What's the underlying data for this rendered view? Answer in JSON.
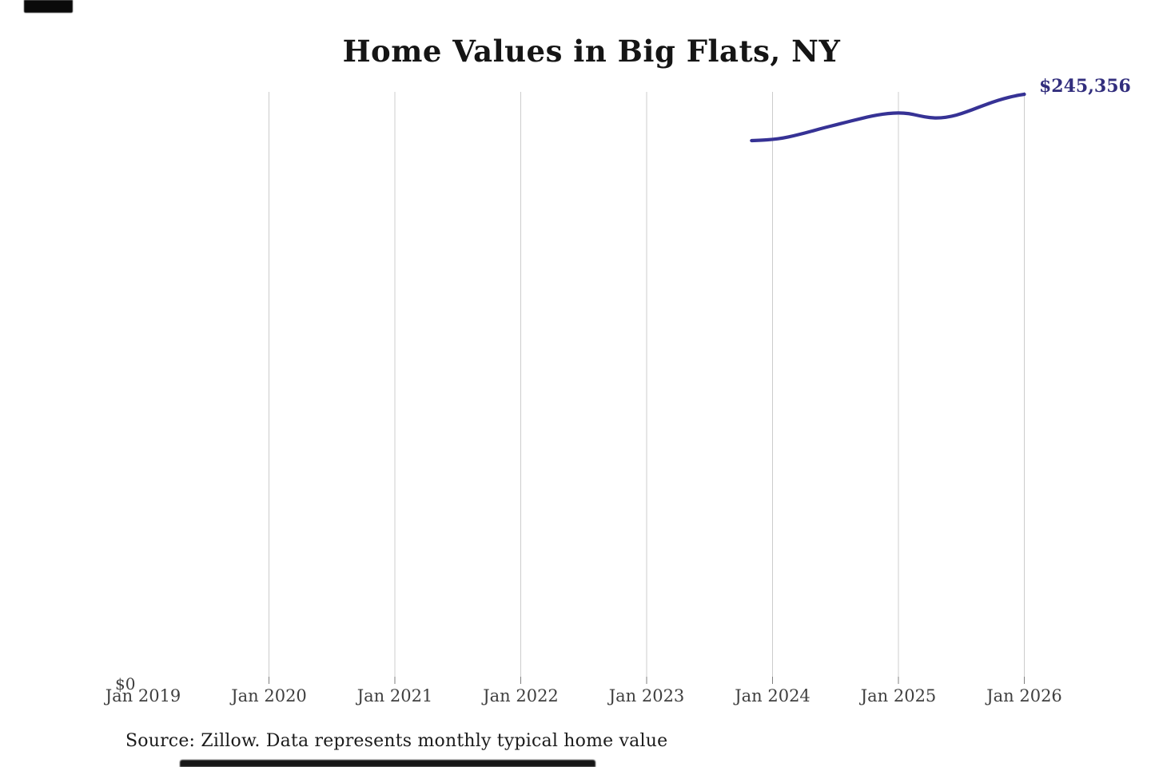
{
  "chart": {
    "title": "Home Values in Big Flats, NY",
    "end_label": "$245,356",
    "y_zero_label": "$0",
    "source_note": "Source: Zillow. Data represents monthly typical home value",
    "colors": {
      "line": "#363295",
      "end_label_text": "#322e7d",
      "gridline": "#cccccc",
      "tick": "#7f7f7f",
      "axis_label": "#3f3f3f",
      "title": "#151515",
      "source": "#1b1b1b"
    }
  },
  "chart_data": {
    "type": "line",
    "title": "Home Values in Big Flats, NY",
    "xlabel": "",
    "ylabel": "",
    "ylim": [
      0,
      246500
    ],
    "grid": "vertical-only",
    "legend": "none",
    "x_ticks": [
      {
        "label": "Jan 2019",
        "gridline": false
      },
      {
        "label": "Jan 2020",
        "gridline": true
      },
      {
        "label": "Jan 2021",
        "gridline": true
      },
      {
        "label": "Jan 2022",
        "gridline": true
      },
      {
        "label": "Jan 2023",
        "gridline": true
      },
      {
        "label": "Jan 2024",
        "gridline": true
      },
      {
        "label": "Jan 2025",
        "gridline": true
      },
      {
        "label": "Jan 2026",
        "gridline": true
      }
    ],
    "series": [
      {
        "name": "Monthly typical home value",
        "color": "#363295",
        "points": [
          {
            "date": "2023-11",
            "value": 225900
          },
          {
            "date": "2023-12",
            "value": 226100
          },
          {
            "date": "2024-01",
            "value": 226400
          },
          {
            "date": "2024-02",
            "value": 227000
          },
          {
            "date": "2024-03",
            "value": 227900
          },
          {
            "date": "2024-04",
            "value": 229000
          },
          {
            "date": "2024-05",
            "value": 230200
          },
          {
            "date": "2024-06",
            "value": 231400
          },
          {
            "date": "2024-07",
            "value": 232500
          },
          {
            "date": "2024-08",
            "value": 233600
          },
          {
            "date": "2024-09",
            "value": 234700
          },
          {
            "date": "2024-10",
            "value": 235800
          },
          {
            "date": "2024-11",
            "value": 236700
          },
          {
            "date": "2024-12",
            "value": 237300
          },
          {
            "date": "2025-01",
            "value": 237600
          },
          {
            "date": "2025-02",
            "value": 237300
          },
          {
            "date": "2025-03",
            "value": 236300
          },
          {
            "date": "2025-04",
            "value": 235500
          },
          {
            "date": "2025-05",
            "value": 235400
          },
          {
            "date": "2025-06",
            "value": 236000
          },
          {
            "date": "2025-07",
            "value": 237200
          },
          {
            "date": "2025-08",
            "value": 238800
          },
          {
            "date": "2025-09",
            "value": 240500
          },
          {
            "date": "2025-10",
            "value": 242100
          },
          {
            "date": "2025-11",
            "value": 243500
          },
          {
            "date": "2025-12",
            "value": 244600
          },
          {
            "date": "2026-01",
            "value": 245356
          }
        ]
      }
    ],
    "end_annotation": {
      "text": "$245,356",
      "date": "2026-01",
      "value": 245356
    }
  }
}
